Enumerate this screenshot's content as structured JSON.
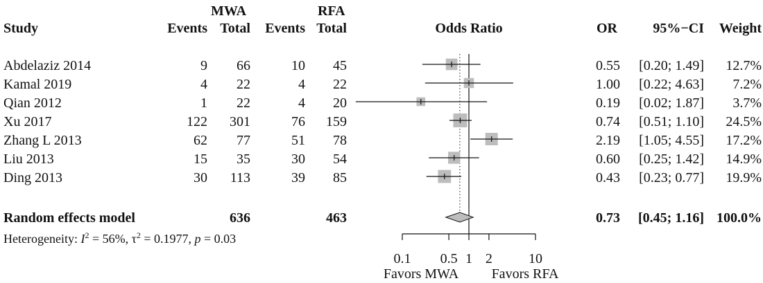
{
  "headers": {
    "group_mwa": "MWA",
    "group_rfa": "RFA",
    "study": "Study",
    "events_mwa": "Events",
    "total_mwa": "Total",
    "events_rfa": "Events",
    "total_rfa": "Total",
    "odds_ratio": "Odds Ratio",
    "or": "OR",
    "ci": "95%−CI",
    "weight": "Weight"
  },
  "studies": [
    {
      "name": "Abdelaziz  2014",
      "events_mwa": "9",
      "total_mwa": "66",
      "events_rfa": "10",
      "total_rfa": "45",
      "or_text": "0.55",
      "ci_text": "[0.20; 1.49]",
      "weight_text": "12.7%"
    },
    {
      "name": "Kamal  2019",
      "events_mwa": "4",
      "total_mwa": "22",
      "events_rfa": "4",
      "total_rfa": "22",
      "or_text": "1.00",
      "ci_text": "[0.22; 4.63]",
      "weight_text": "7.2%"
    },
    {
      "name": "Qian  2012",
      "events_mwa": "1",
      "total_mwa": "22",
      "events_rfa": "4",
      "total_rfa": "20",
      "or_text": "0.19",
      "ci_text": "[0.02; 1.87]",
      "weight_text": "3.7%"
    },
    {
      "name": "Xu  2017",
      "events_mwa": "122",
      "total_mwa": "301",
      "events_rfa": "76",
      "total_rfa": "159",
      "or_text": "0.74",
      "ci_text": "[0.51; 1.10]",
      "weight_text": "24.5%"
    },
    {
      "name": "Zhang L  2013",
      "events_mwa": "62",
      "total_mwa": "77",
      "events_rfa": "51",
      "total_rfa": "78",
      "or_text": "2.19",
      "ci_text": "[1.05; 4.55]",
      "weight_text": "17.2%"
    },
    {
      "name": "Liu  2013",
      "events_mwa": "15",
      "total_mwa": "35",
      "events_rfa": "30",
      "total_rfa": "54",
      "or_text": "0.60",
      "ci_text": "[0.25; 1.42]",
      "weight_text": "14.9%"
    },
    {
      "name": "Ding  2013",
      "events_mwa": "30",
      "total_mwa": "113",
      "events_rfa": "39",
      "total_rfa": "85",
      "or_text": "0.43",
      "ci_text": "[0.23; 0.77]",
      "weight_text": "19.9%"
    }
  ],
  "summary": {
    "label": "Random effects model",
    "total_mwa": "636",
    "total_rfa": "463",
    "or_text": "0.73",
    "ci_text": "[0.45; 1.16]",
    "weight_text": "100.0%"
  },
  "heterogeneity": {
    "prefix": "Heterogeneity: ",
    "i_symbol": "I",
    "sup": "2",
    "i2_value": " = 56%, ",
    "tau_symbol": "τ",
    "tau_value": " = 0.1977, ",
    "p_symbol": "p",
    "p_value": " = 0.03"
  },
  "footer": {
    "favors_left": "Favors MWA",
    "favors_right": "Favors RFA"
  },
  "chart_data": {
    "type": "forest",
    "scale": "log",
    "xlim": [
      0.1,
      10
    ],
    "ticks": [
      0.1,
      0.5,
      1,
      2,
      10
    ],
    "tick_labels": [
      "0.1",
      "0.5",
      "1",
      "2",
      "10"
    ],
    "null_line": 1,
    "summary_line": 0.73,
    "points": [
      {
        "study": "Abdelaziz  2014",
        "or": 0.55,
        "lower": 0.2,
        "upper": 1.49,
        "weight": 12.7
      },
      {
        "study": "Kamal  2019",
        "or": 1.0,
        "lower": 0.22,
        "upper": 4.63,
        "weight": 7.2
      },
      {
        "study": "Qian  2012",
        "or": 0.19,
        "lower": 0.02,
        "upper": 1.87,
        "weight": 3.7
      },
      {
        "study": "Xu  2017",
        "or": 0.74,
        "lower": 0.51,
        "upper": 1.1,
        "weight": 24.5
      },
      {
        "study": "Zhang L  2013",
        "or": 2.19,
        "lower": 1.05,
        "upper": 4.55,
        "weight": 17.2
      },
      {
        "study": "Liu  2013",
        "or": 0.6,
        "lower": 0.25,
        "upper": 1.42,
        "weight": 14.9
      },
      {
        "study": "Ding  2013",
        "or": 0.43,
        "lower": 0.23,
        "upper": 0.77,
        "weight": 19.9
      }
    ],
    "summary": {
      "label": "Random effects model",
      "or": 0.73,
      "lower": 0.45,
      "upper": 1.16
    },
    "colors": {
      "box": "#bdbdbd",
      "line": "#111111",
      "diamond": "#bdbdbd"
    }
  }
}
